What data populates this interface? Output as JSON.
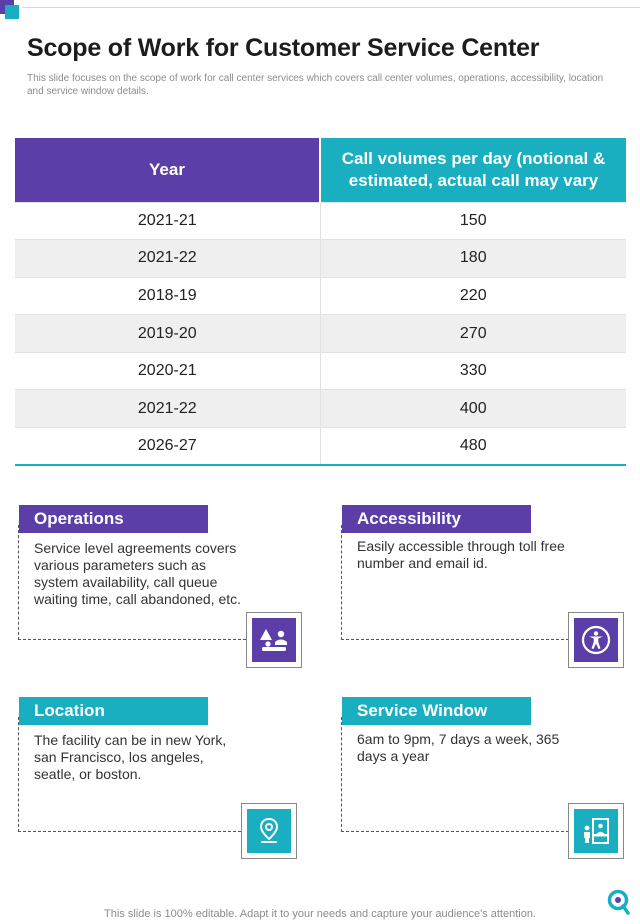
{
  "header": {
    "title": "Scope of Work for Customer Service Center",
    "subtitle": "This slide focuses on the scope of work for call center services which covers call center volumes, operations, accessibility, location and service window details."
  },
  "table": {
    "headers": [
      "Year",
      "Call volumes per day (notional & estimated, actual call may vary"
    ],
    "rows": [
      {
        "year": "2021-21",
        "calls": "150"
      },
      {
        "year": "2021-22",
        "calls": "180"
      },
      {
        "year": "2018-19",
        "calls": "220"
      },
      {
        "year": "2019-20",
        "calls": "270"
      },
      {
        "year": "2020-21",
        "calls": "330"
      },
      {
        "year": "2021-22",
        "calls": "400"
      },
      {
        "year": "2026-27",
        "calls": "480"
      }
    ]
  },
  "cards": {
    "operations": {
      "title": "Operations",
      "text": "Service level agreements covers various parameters such as system availability, call queue waiting time, call abandoned, etc.",
      "icon": "people-queue-icon"
    },
    "accessibility": {
      "title": "Accessibility",
      "text": "Easily accessible through toll free number and email id.",
      "icon": "accessibility-icon"
    },
    "location": {
      "title": "Location",
      "text": "The facility can be in new York, san Francisco, los angeles, seatle, or boston.",
      "icon": "map-pin-icon"
    },
    "service_window": {
      "title": "Service Window",
      "text": "6am to 9pm, 7 days a week, 365 days a year",
      "icon": "service-counter-icon"
    }
  },
  "footer": {
    "text": "This slide is 100% editable. Adapt it to your needs and capture your audience's attention."
  },
  "colors": {
    "purple": "#5b3ea8",
    "teal": "#1aaec1"
  }
}
